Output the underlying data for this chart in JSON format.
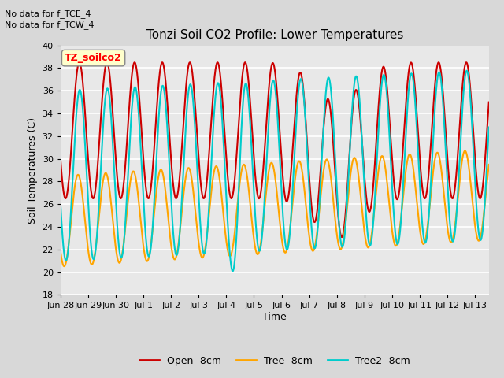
{
  "title": "Tonzi Soil CO2 Profile: Lower Temperatures",
  "xlabel": "Time",
  "ylabel": "Soil Temperatures (C)",
  "ylim": [
    18,
    40
  ],
  "yticks": [
    18,
    20,
    22,
    24,
    26,
    28,
    30,
    32,
    34,
    36,
    38,
    40
  ],
  "annotations": [
    "No data for f_TCE_4",
    "No data for f_TCW_4"
  ],
  "box_label": "TZ_soilco2",
  "series": {
    "open": {
      "label": "Open -8cm",
      "color": "#CC0000",
      "linewidth": 1.5
    },
    "tree": {
      "label": "Tree -8cm",
      "color": "#FFA500",
      "linewidth": 1.5
    },
    "tree2": {
      "label": "Tree2 -8cm",
      "color": "#00CCCC",
      "linewidth": 1.5
    }
  },
  "x_tick_labels": [
    "Jun 28",
    "Jun 29",
    "Jun 30",
    "Jul 1",
    "Jul 2",
    "Jul 3",
    "Jul 4",
    "Jul 5",
    "Jul 6",
    "Jul 7",
    "Jul 8",
    "Jul 9",
    "Jul 10",
    "Jul 11",
    "Jul 12",
    "Jul 13"
  ],
  "background_color": "#D8D8D8",
  "plot_bg_color": "#E8E8E8",
  "grid_color": "#FFFFFF",
  "n_days": 15.5,
  "points_per_day": 96
}
